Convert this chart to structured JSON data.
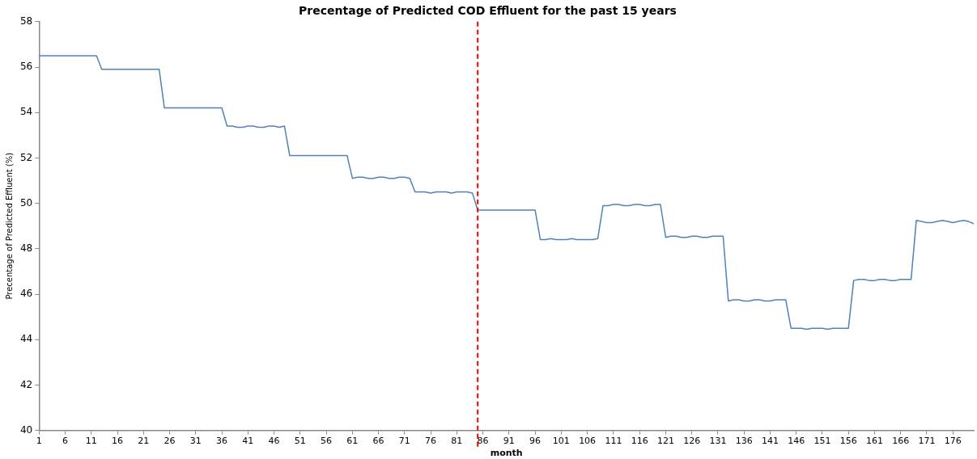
{
  "chart_data": {
    "type": "line",
    "title": "Precentage of Predicted COD Effluent for the past 15 years",
    "xlabel": "month",
    "ylabel": "Precentage of Predicted Effluent (%)",
    "x": [
      1,
      2,
      3,
      4,
      5,
      6,
      7,
      8,
      9,
      10,
      11,
      12,
      13,
      14,
      15,
      16,
      17,
      18,
      19,
      20,
      21,
      22,
      23,
      24,
      25,
      26,
      27,
      28,
      29,
      30,
      31,
      32,
      33,
      34,
      35,
      36,
      37,
      38,
      39,
      40,
      41,
      42,
      43,
      44,
      45,
      46,
      47,
      48,
      49,
      50,
      51,
      52,
      53,
      54,
      55,
      56,
      57,
      58,
      59,
      60,
      61,
      62,
      63,
      64,
      65,
      66,
      67,
      68,
      69,
      70,
      71,
      72,
      73,
      74,
      75,
      76,
      77,
      78,
      79,
      80,
      81,
      82,
      83,
      84,
      85,
      86,
      87,
      88,
      89,
      90,
      91,
      92,
      93,
      94,
      95,
      96,
      97,
      98,
      99,
      100,
      101,
      102,
      103,
      104,
      105,
      106,
      107,
      108,
      109,
      110,
      111,
      112,
      113,
      114,
      115,
      116,
      117,
      118,
      119,
      120,
      121,
      122,
      123,
      124,
      125,
      126,
      127,
      128,
      129,
      130,
      131,
      132,
      133,
      134,
      135,
      136,
      137,
      138,
      139,
      140,
      141,
      142,
      143,
      144,
      145,
      146,
      147,
      148,
      149,
      150,
      151,
      152,
      153,
      154,
      155,
      156,
      157,
      158,
      159,
      160,
      161,
      162,
      163,
      164,
      165,
      166,
      167,
      168,
      169,
      170,
      171,
      172,
      173,
      174,
      175,
      176,
      177,
      178,
      179,
      180
    ],
    "series": [
      {
        "color": "#4f81bd",
        "values": [
          56.5,
          56.5,
          56.5,
          56.5,
          56.5,
          56.5,
          56.5,
          56.5,
          56.5,
          56.5,
          56.5,
          56.5,
          55.9,
          55.9,
          55.9,
          55.9,
          55.9,
          55.9,
          55.9,
          55.9,
          55.9,
          55.9,
          55.9,
          55.9,
          54.2,
          54.2,
          54.2,
          54.2,
          54.2,
          54.2,
          54.2,
          54.2,
          54.2,
          54.2,
          54.2,
          54.2,
          53.4,
          53.4,
          53.35,
          53.35,
          53.4,
          53.4,
          53.35,
          53.35,
          53.4,
          53.4,
          53.35,
          53.4,
          52.1,
          52.1,
          52.1,
          52.1,
          52.1,
          52.1,
          52.1,
          52.1,
          52.1,
          52.1,
          52.1,
          52.1,
          51.1,
          51.15,
          51.15,
          51.1,
          51.1,
          51.15,
          51.15,
          51.1,
          51.1,
          51.15,
          51.15,
          51.1,
          50.5,
          50.5,
          50.5,
          50.45,
          50.5,
          50.5,
          50.5,
          50.45,
          50.5,
          50.5,
          50.5,
          50.45,
          49.7,
          49.7,
          49.7,
          49.7,
          49.7,
          49.7,
          49.7,
          49.7,
          49.7,
          49.7,
          49.7,
          49.7,
          48.4,
          48.4,
          48.45,
          48.4,
          48.4,
          48.4,
          48.45,
          48.4,
          48.4,
          48.4,
          48.4,
          48.45,
          49.9,
          49.9,
          49.95,
          49.95,
          49.9,
          49.9,
          49.95,
          49.95,
          49.9,
          49.9,
          49.95,
          49.95,
          48.5,
          48.55,
          48.55,
          48.5,
          48.5,
          48.55,
          48.55,
          48.5,
          48.5,
          48.55,
          48.55,
          48.55,
          45.7,
          45.75,
          45.75,
          45.7,
          45.7,
          45.75,
          45.75,
          45.7,
          45.7,
          45.75,
          45.75,
          45.75,
          44.5,
          44.5,
          44.5,
          44.45,
          44.5,
          44.5,
          44.5,
          44.45,
          44.5,
          44.5,
          44.5,
          44.5,
          46.6,
          46.65,
          46.65,
          46.6,
          46.6,
          46.65,
          46.65,
          46.6,
          46.6,
          46.65,
          46.65,
          46.65,
          49.25,
          49.2,
          49.15,
          49.15,
          49.2,
          49.25,
          49.2,
          49.15,
          49.2,
          49.25,
          49.2,
          49.1
        ]
      }
    ],
    "xlim": [
      1,
      180
    ],
    "xticks": [
      1,
      6,
      11,
      16,
      21,
      26,
      31,
      36,
      41,
      46,
      51,
      56,
      61,
      66,
      71,
      76,
      81,
      86,
      91,
      96,
      101,
      106,
      111,
      116,
      121,
      126,
      131,
      136,
      141,
      146,
      151,
      156,
      161,
      166,
      171,
      176
    ],
    "ylim": [
      40,
      58
    ],
    "yticks": [
      40,
      42,
      44,
      46,
      48,
      50,
      52,
      54,
      56,
      58
    ],
    "ref_lines": [
      {
        "axis": "x",
        "value": 85,
        "color": "#ff0000",
        "line_style": "dashed"
      }
    ],
    "grid": false,
    "legend": false,
    "marker": "none",
    "line_style": "solid"
  }
}
